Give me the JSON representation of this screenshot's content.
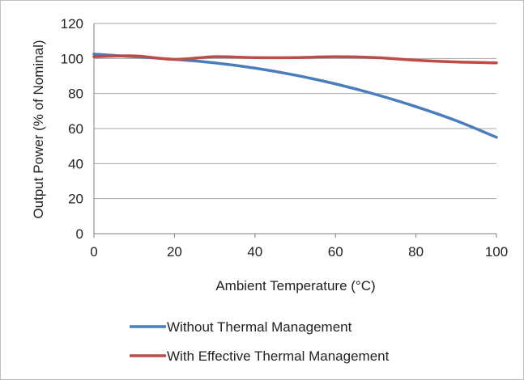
{
  "chart_data": {
    "type": "line",
    "xlabel": "Ambient Temperature (°C)",
    "ylabel": "Output Power (% of Nominal)",
    "xlim": [
      0,
      100
    ],
    "ylim": [
      0,
      120
    ],
    "xticks": [
      0,
      20,
      40,
      60,
      80,
      100
    ],
    "yticks": [
      0,
      20,
      40,
      60,
      80,
      100,
      120
    ],
    "grid": "horizontal",
    "legend": "bottom",
    "series": [
      {
        "name": "Without Thermal Management",
        "color": "#4a7ebb",
        "x": [
          0,
          10,
          20,
          30,
          40,
          50,
          60,
          70,
          80,
          90,
          100
        ],
        "y": [
          102.5,
          101,
          99.5,
          97.5,
          94.5,
          90.5,
          85.5,
          79.5,
          72.5,
          64.5,
          55
        ]
      },
      {
        "name": "With Effective Thermal Management",
        "color": "#be4b48",
        "x": [
          0,
          10,
          20,
          30,
          40,
          50,
          60,
          70,
          80,
          90,
          100
        ],
        "y": [
          101,
          101.5,
          99.5,
          101,
          100.5,
          100.5,
          101,
          100.5,
          99,
          98,
          97.5
        ]
      }
    ]
  }
}
